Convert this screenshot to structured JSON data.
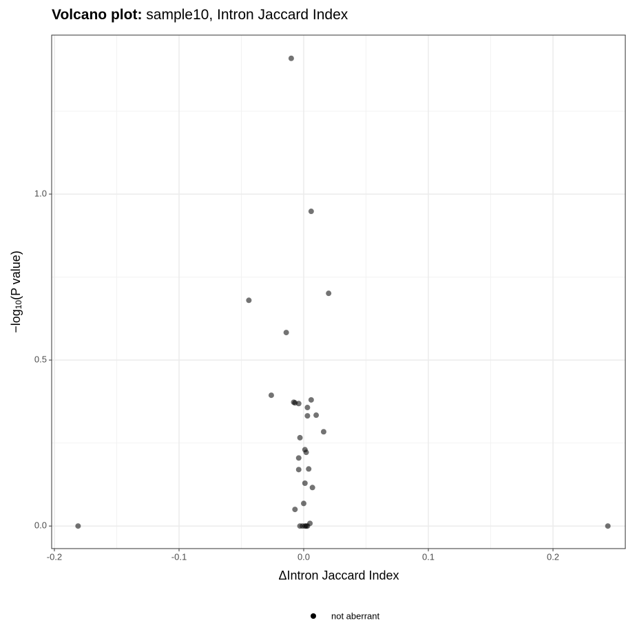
{
  "chart_data": {
    "type": "scatter",
    "title_lead": "Volcano plot:",
    "title": "sample10, Intron Jaccard Index",
    "xlabel": "ΔIntron Jaccard Index",
    "ylabel": "−log",
    "ylabel_sub": "10",
    "ylabel_tail": "(P value)",
    "xlim": [
      -0.2022,
      0.258
    ],
    "ylim": [
      -0.068,
      1.479
    ],
    "xticks": [
      -0.2,
      -0.1,
      {
        "value": 0,
        "label": "0.0"
      },
      0.1,
      0.2
    ],
    "yticks": [
      {
        "value": 0,
        "label": "0.0"
      },
      0.5,
      {
        "value": 1,
        "label": "1.0"
      }
    ],
    "x_minor_grid": [
      -0.15,
      -0.05,
      0.05,
      0.15
    ],
    "y_minor_grid": [
      0.25,
      0.75,
      1.25
    ],
    "grid": true,
    "legend": "bottom",
    "series": [
      {
        "name": "not aberrant",
        "color": "#000000",
        "opacity": 0.55,
        "x": [
          -0.01,
          0.006,
          -0.044,
          0.02,
          -0.014,
          -0.026,
          -0.008,
          -0.007,
          -0.004,
          0.006,
          0.003,
          0.003,
          0.01,
          0.016,
          -0.003,
          0.001,
          0.002,
          -0.004,
          -0.004,
          0.004,
          0.007,
          0.001,
          0.0,
          -0.007,
          0.005,
          -0.181,
          0.244,
          -0.003,
          -0.001,
          0.001,
          0.002,
          0.003
        ],
        "values": [
          1.409,
          0.948,
          0.68,
          0.701,
          0.583,
          0.394,
          0.373,
          0.371,
          0.369,
          0.38,
          0.357,
          0.332,
          0.334,
          0.284,
          0.266,
          0.23,
          0.222,
          0.205,
          0.17,
          0.172,
          0.116,
          0.129,
          0.068,
          0.05,
          0.008,
          0,
          0,
          0,
          0,
          0,
          0,
          0
        ]
      }
    ]
  }
}
